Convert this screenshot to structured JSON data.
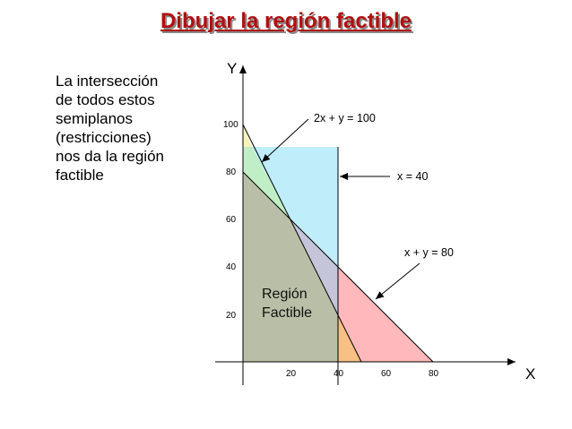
{
  "title": "Dibujar la región factible",
  "description_lines": [
    "La intersección",
    "de todos estos",
    "semiplanos",
    "(restricciones)",
    "nos da la región",
    "factible"
  ],
  "axes": {
    "x_label": "X",
    "y_label": "Y",
    "x_ticks": [
      "20",
      "40",
      "60",
      "80"
    ],
    "y_ticks": [
      "20",
      "40",
      "60",
      "80",
      "100"
    ]
  },
  "constraints": [
    {
      "label": "2x + y = 100"
    },
    {
      "label": "x = 40"
    },
    {
      "label": "x + y = 80"
    }
  ],
  "region_label": [
    "Región",
    "Factible"
  ],
  "colors": {
    "title": "#b01010",
    "feasible": "#b8bfa6",
    "light_blue": "#bfeefa",
    "light_green": "#c0eec6",
    "light_yellow": "#f7f4b8",
    "pink": "#ffb8bc",
    "orange": "#f8c084",
    "lavender": "#c4c5d8"
  }
}
